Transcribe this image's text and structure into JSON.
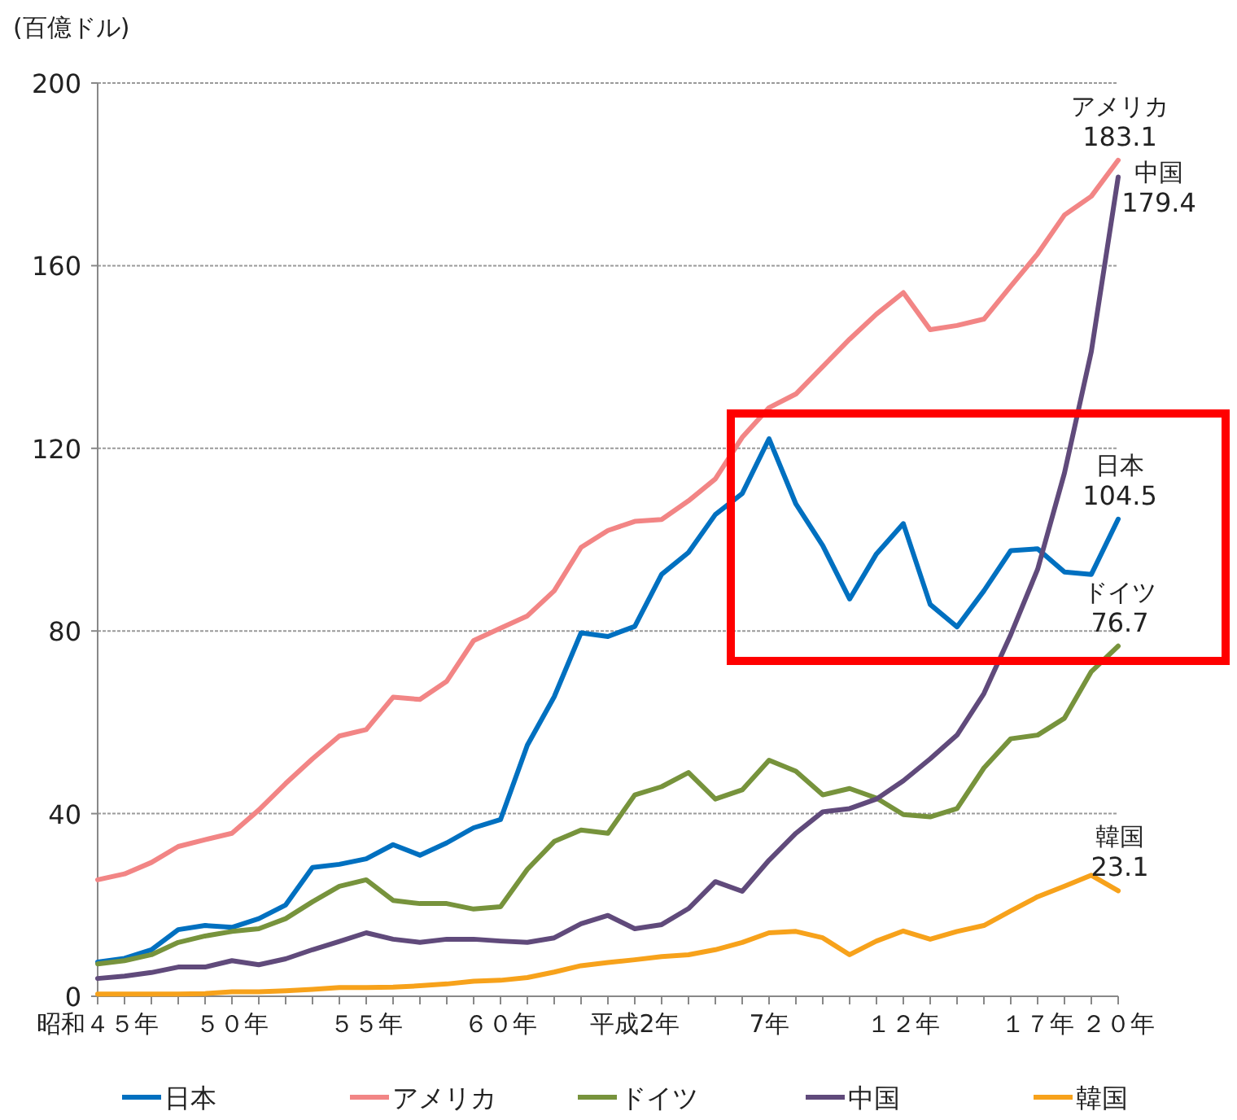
{
  "chart_data": {
    "type": "line",
    "ylabel": "(百億ドル)",
    "categories": [
      "昭和４５年",
      null,
      null,
      null,
      null,
      "５０年",
      null,
      null,
      null,
      null,
      "５５年",
      null,
      null,
      null,
      null,
      "６０年",
      null,
      null,
      null,
      null,
      "平成2年",
      null,
      null,
      null,
      null,
      "7年",
      null,
      null,
      null,
      null,
      "１２年",
      null,
      null,
      null,
      null,
      "１７年",
      null,
      null,
      "２０年"
    ],
    "ylim": [
      0,
      200
    ],
    "yticks": [
      0,
      40,
      80,
      120,
      160,
      200
    ],
    "grid": "y",
    "legend": "bottom",
    "marker": "none",
    "line_style": "solid",
    "series": [
      {
        "name": "日本",
        "color": "#0070c0",
        "values": [
          7.5,
          8.3,
          10.2,
          14.6,
          15.5,
          15.1,
          17,
          20,
          28.2,
          28.9,
          30.1,
          33.2,
          30.9,
          33.6,
          36.9,
          38.7,
          55,
          65.6,
          79.6,
          78.8,
          81,
          92.4,
          97.2,
          105.5,
          110.1,
          122.1,
          107.8,
          98.7,
          87,
          96.9,
          103.5,
          85.8,
          80.9,
          88.8,
          97.6,
          98,
          92.9,
          92.4,
          104.5
        ],
        "value_labels": [
          null,
          null,
          null,
          null,
          null,
          null,
          null,
          null,
          null,
          null,
          null,
          null,
          null,
          null,
          null,
          null,
          null,
          null,
          null,
          null,
          null,
          null,
          null,
          null,
          null,
          null,
          null,
          null,
          null,
          null,
          null,
          null,
          null,
          null,
          null,
          null,
          null,
          null,
          "104.5"
        ]
      },
      {
        "name": "アメリカ",
        "color": "#f28585",
        "values": [
          25.5,
          26.8,
          29.3,
          32.8,
          34.3,
          35.7,
          40.8,
          46.6,
          52,
          57,
          58.4,
          65.5,
          65,
          69,
          77.9,
          80.6,
          83.3,
          88.8,
          98.3,
          102,
          104,
          104.4,
          108.5,
          113.3,
          122.4,
          128.9,
          131.9,
          137.9,
          143.9,
          149.4,
          154.1,
          146,
          146.9,
          148.3,
          155.5,
          162.6,
          171.1,
          175.2,
          183.1
        ],
        "value_labels": [
          null,
          null,
          null,
          null,
          null,
          null,
          null,
          null,
          null,
          null,
          null,
          null,
          null,
          null,
          null,
          null,
          null,
          null,
          null,
          null,
          null,
          null,
          null,
          null,
          null,
          null,
          null,
          null,
          null,
          null,
          null,
          null,
          null,
          null,
          null,
          null,
          null,
          null,
          "183.1"
        ]
      },
      {
        "name": "ドイツ",
        "color": "#77933c",
        "values": [
          7.1,
          7.8,
          9.1,
          11.8,
          13.2,
          14.2,
          14.8,
          17,
          20.7,
          24.1,
          25.5,
          21,
          20.3,
          20.3,
          19.1,
          19.6,
          27.8,
          33.9,
          36.4,
          35.7,
          44.1,
          45.9,
          49,
          43.2,
          45.2,
          51.7,
          49.3,
          44.1,
          45.5,
          43.4,
          39.8,
          39.3,
          41.1,
          50,
          56.4,
          57.2,
          60.9,
          71.1,
          76.7
        ],
        "value_labels": [
          null,
          null,
          null,
          null,
          null,
          null,
          null,
          null,
          null,
          null,
          null,
          null,
          null,
          null,
          null,
          null,
          null,
          null,
          null,
          null,
          null,
          null,
          null,
          null,
          null,
          null,
          null,
          null,
          null,
          null,
          null,
          null,
          null,
          null,
          null,
          null,
          null,
          null,
          "76.7"
        ]
      },
      {
        "name": "中国",
        "color": "#604a7b",
        "values": [
          3.9,
          4.4,
          5.2,
          6.4,
          6.4,
          7.8,
          6.9,
          8.2,
          10.2,
          12,
          13.9,
          12.5,
          11.8,
          12.5,
          12.5,
          12.1,
          11.8,
          12.8,
          15.9,
          17.7,
          14.8,
          15.7,
          19.2,
          25.1,
          23,
          29.8,
          35.7,
          40.4,
          41.1,
          43.2,
          47.2,
          52,
          57.2,
          66.3,
          79.2,
          93.5,
          114.6,
          141.2,
          179.4
        ],
        "value_labels": [
          null,
          null,
          null,
          null,
          null,
          null,
          null,
          null,
          null,
          null,
          null,
          null,
          null,
          null,
          null,
          null,
          null,
          null,
          null,
          null,
          null,
          null,
          null,
          null,
          null,
          null,
          null,
          null,
          null,
          null,
          null,
          null,
          null,
          null,
          null,
          null,
          null,
          null,
          "179.4"
        ]
      },
      {
        "name": "韓国",
        "color": "#f7a21b",
        "values": [
          0.5,
          0.5,
          0.5,
          0.5,
          0.6,
          1,
          1,
          1.2,
          1.5,
          1.9,
          1.9,
          2,
          2.3,
          2.7,
          3.3,
          3.5,
          4.1,
          5.3,
          6.7,
          7.4,
          8,
          8.7,
          9.1,
          10.2,
          11.8,
          13.9,
          14.2,
          12.8,
          9.1,
          12.1,
          14.3,
          12.5,
          14.2,
          15.5,
          18.7,
          21.8,
          24.1,
          26.5,
          23.1
        ],
        "value_labels": [
          null,
          null,
          null,
          null,
          null,
          null,
          null,
          null,
          null,
          null,
          null,
          null,
          null,
          null,
          null,
          null,
          null,
          null,
          null,
          null,
          null,
          null,
          null,
          null,
          null,
          null,
          null,
          null,
          null,
          null,
          null,
          null,
          null,
          null,
          null,
          null,
          null,
          null,
          "23.1"
        ]
      }
    ]
  }
}
